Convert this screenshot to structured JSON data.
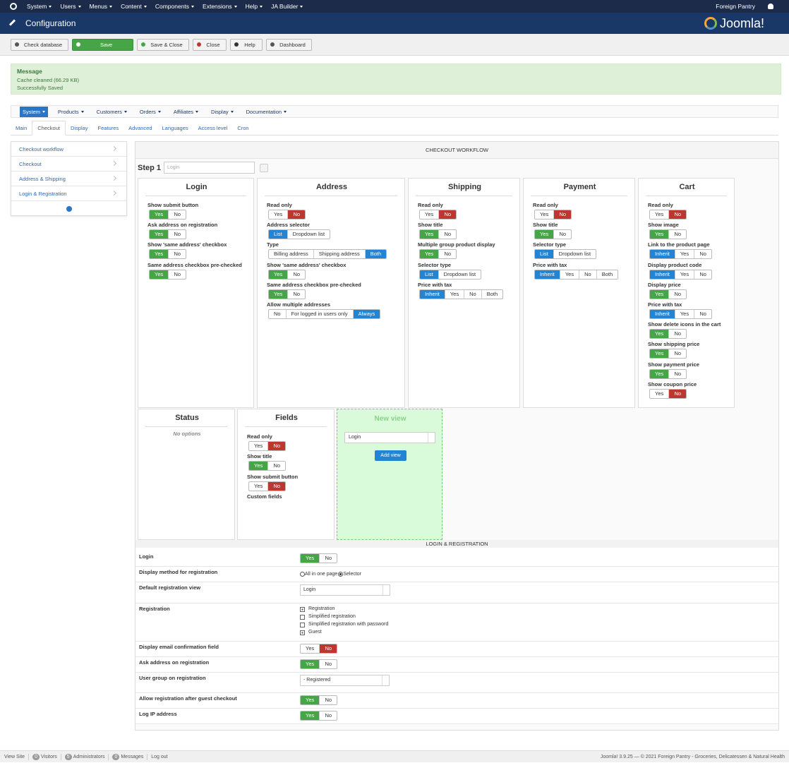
{
  "topbar": {
    "menus": [
      "System",
      "Users",
      "Menus",
      "Content",
      "Components",
      "Extensions",
      "Help",
      "JA Builder"
    ],
    "site": "Foreign Pantry"
  },
  "header": {
    "title": "Configuration",
    "brand": "Joomla!"
  },
  "toolbar": [
    {
      "label": "Check database",
      "color": "#f3f3f3"
    },
    {
      "label": "Save",
      "color": "#46a546"
    },
    {
      "label": "Save & Close",
      "color": "#f3f3f3"
    },
    {
      "label": "Close",
      "color": "#f3f3f3"
    },
    {
      "label": "Help",
      "color": "#f3f3f3"
    },
    {
      "label": "Dashboard",
      "color": "#f3f3f3"
    }
  ],
  "message": {
    "heading": "Message",
    "lines": [
      "Cache cleaned (66.29 KB)",
      "Successfully Saved"
    ]
  },
  "submenu": [
    "System",
    "Products",
    "Customers",
    "Orders",
    "Affiliates",
    "Display",
    "Documentation"
  ],
  "tabs": {
    "items": [
      "Main",
      "Checkout",
      "Display",
      "Features",
      "Advanced",
      "Languages",
      "Access level",
      "Cron"
    ],
    "active": 1
  },
  "sidebar": [
    "Checkout workflow",
    "Checkout",
    "Address & Shipping",
    "Login & Registration"
  ],
  "workflow": {
    "title": "CHECKOUT WORKFLOW",
    "step": "Step 1",
    "step_name": "Login",
    "panels": [
      {
        "title": "Login",
        "options": [
          {
            "label": "Show submit button",
            "choices": [
              "Yes",
              "No"
            ],
            "selected": 0,
            "color": "#46a546"
          },
          {
            "label": "Ask address on registration",
            "choices": [
              "Yes",
              "No"
            ],
            "selected": 0,
            "color": "#46a546"
          },
          {
            "label": "Show 'same address' checkbox",
            "choices": [
              "Yes",
              "No"
            ],
            "selected": 0,
            "color": "#46a546"
          },
          {
            "label": "Same address checkbox pre-checked",
            "choices": [
              "Yes",
              "No"
            ],
            "selected": 0,
            "color": "#46a546"
          }
        ]
      },
      {
        "title": "Address",
        "options": [
          {
            "label": "Read only",
            "choices": [
              "Yes",
              "No"
            ],
            "selected": 1,
            "color": "#bd362f"
          },
          {
            "label": "Address selector",
            "choices": [
              "List",
              "Dropdown list"
            ],
            "selected": 0,
            "color": "#2384d3"
          },
          {
            "label": "Type",
            "choices": [
              "Billing address",
              "Shipping address",
              "Both"
            ],
            "selected": 2,
            "color": "#2384d3"
          },
          {
            "label": "Show 'same address' checkbox",
            "choices": [
              "Yes",
              "No"
            ],
            "selected": 0,
            "color": "#46a546"
          },
          {
            "label": "Same address checkbox pre-checked",
            "choices": [
              "Yes",
              "No"
            ],
            "selected": 0,
            "color": "#46a546"
          },
          {
            "label": "Allow multiple addresses",
            "choices": [
              "No",
              "For logged in users only",
              "Always"
            ],
            "selected": 2,
            "color": "#2384d3"
          }
        ]
      },
      {
        "title": "Shipping",
        "options": [
          {
            "label": "Read only",
            "choices": [
              "Yes",
              "No"
            ],
            "selected": 1,
            "color": "#bd362f"
          },
          {
            "label": "Show title",
            "choices": [
              "Yes",
              "No"
            ],
            "selected": 0,
            "color": "#46a546"
          },
          {
            "label": "Multiple group product display",
            "choices": [
              "Yes",
              "No"
            ],
            "selected": 0,
            "color": "#46a546"
          },
          {
            "label": "Selector type",
            "choices": [
              "List",
              "Dropdown list"
            ],
            "selected": 0,
            "color": "#2384d3"
          },
          {
            "label": "Price with tax",
            "choices": [
              "Inherit",
              "Yes",
              "No",
              "Both"
            ],
            "selected": 0,
            "color": "#2384d3"
          }
        ]
      },
      {
        "title": "Payment",
        "options": [
          {
            "label": "Read only",
            "choices": [
              "Yes",
              "No"
            ],
            "selected": 1,
            "color": "#bd362f"
          },
          {
            "label": "Show title",
            "choices": [
              "Yes",
              "No"
            ],
            "selected": 0,
            "color": "#46a546"
          },
          {
            "label": "Selector type",
            "choices": [
              "List",
              "Dropdown list"
            ],
            "selected": 0,
            "color": "#2384d3"
          },
          {
            "label": "Price with tax",
            "choices": [
              "Inherit",
              "Yes",
              "No",
              "Both"
            ],
            "selected": 0,
            "color": "#2384d3"
          }
        ]
      },
      {
        "title": "Cart",
        "options": [
          {
            "label": "Read only",
            "choices": [
              "Yes",
              "No"
            ],
            "selected": 1,
            "color": "#bd362f"
          },
          {
            "label": "Show image",
            "choices": [
              "Yes",
              "No"
            ],
            "selected": 0,
            "color": "#46a546"
          },
          {
            "label": "Link to the product page",
            "choices": [
              "Inherit",
              "Yes",
              "No"
            ],
            "selected": 0,
            "color": "#2384d3"
          },
          {
            "label": "Display product code",
            "choices": [
              "Inherit",
              "Yes",
              "No"
            ],
            "selected": 0,
            "color": "#2384d3"
          },
          {
            "label": "Display price",
            "choices": [
              "Yes",
              "No"
            ],
            "selected": 0,
            "color": "#46a546"
          },
          {
            "label": "Price with tax",
            "choices": [
              "Inherit",
              "Yes",
              "No"
            ],
            "selected": 0,
            "color": "#2384d3"
          },
          {
            "label": "Show delete icons in the cart",
            "choices": [
              "Yes",
              "No"
            ],
            "selected": 0,
            "color": "#46a546"
          },
          {
            "label": "Show shipping price",
            "choices": [
              "Yes",
              "No"
            ],
            "selected": 0,
            "color": "#46a546"
          },
          {
            "label": "Show payment price",
            "choices": [
              "Yes",
              "No"
            ],
            "selected": 0,
            "color": "#46a546"
          },
          {
            "label": "Show coupon price",
            "choices": [
              "Yes",
              "No"
            ],
            "selected": 1,
            "color": "#bd362f"
          }
        ]
      }
    ],
    "status": {
      "title": "Status",
      "note": "No options"
    },
    "fields": {
      "title": "Fields",
      "options": [
        {
          "label": "Read only",
          "choices": [
            "Yes",
            "No"
          ],
          "selected": 1,
          "color": "#bd362f"
        },
        {
          "label": "Show title",
          "choices": [
            "Yes",
            "No"
          ],
          "selected": 0,
          "color": "#46a546"
        },
        {
          "label": "Show submit button",
          "choices": [
            "Yes",
            "No"
          ],
          "selected": 1,
          "color": "#bd362f"
        },
        {
          "label": "Custom fields"
        }
      ]
    },
    "new_view": {
      "title": "New view",
      "select": "Login",
      "button": "Add view"
    }
  },
  "login_registration": {
    "title": "LOGIN & REGISTRATION",
    "rows": [
      {
        "label": "Login",
        "kind": "toggle",
        "choices": [
          "Yes",
          "No"
        ],
        "selected": 0,
        "color": "#46a546"
      },
      {
        "label": "Display method for registration",
        "kind": "radio",
        "choices": [
          "All in one page",
          "Selector"
        ],
        "selected": 1
      },
      {
        "label": "Default registration view",
        "kind": "select",
        "value": "Login"
      },
      {
        "label": "Registration",
        "kind": "checkbox",
        "choices": [
          "Registration",
          "Simplified registration",
          "Simplified registration with password",
          "Guest"
        ],
        "checked": [
          true,
          false,
          false,
          true
        ]
      },
      {
        "label": "Display email confirmation field",
        "kind": "toggle",
        "choices": [
          "Yes",
          "No"
        ],
        "selected": 1,
        "color": "#bd362f"
      },
      {
        "label": "Ask address on registration",
        "kind": "toggle",
        "choices": [
          "Yes",
          "No"
        ],
        "selected": 0,
        "color": "#46a546"
      },
      {
        "label": "User group on registration",
        "kind": "select",
        "value": "- Registered"
      },
      {
        "label": "Allow registration after guest checkout",
        "kind": "toggle",
        "choices": [
          "Yes",
          "No"
        ],
        "selected": 0,
        "color": "#46a546"
      },
      {
        "label": "Log IP address",
        "kind": "toggle",
        "choices": [
          "Yes",
          "No"
        ],
        "selected": 0,
        "color": "#46a546"
      }
    ]
  },
  "footer": {
    "view_site": "View Site",
    "visitors": {
      "count": 0,
      "label": "Visitors"
    },
    "administrators": {
      "count": 5,
      "label": "Administrators"
    },
    "messages": {
      "count": 0,
      "label": "Messages"
    },
    "logout": "Log out",
    "copyright": "Joomla! 3.9.25 — © 2021 Foreign Pantry - Groceries, Delicatessen & Natural Health"
  }
}
